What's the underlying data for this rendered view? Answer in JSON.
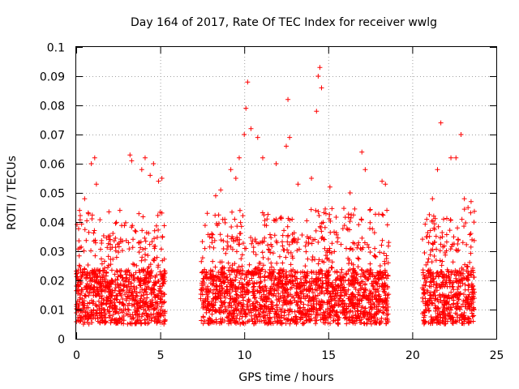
{
  "chart_data": {
    "type": "scatter",
    "title": "Day 164 of 2017, Rate Of TEC Index for receiver wwlg",
    "xlabel": "GPS time / hours",
    "ylabel": "ROTI / TECUs",
    "xlim": [
      0,
      25
    ],
    "ylim": [
      0,
      0.1
    ],
    "grid": true,
    "marker": "+",
    "color": "#ff0000",
    "x_ticks": [
      "0",
      "5",
      "10",
      "15",
      "20",
      "25"
    ],
    "y_ticks": [
      "0",
      "0.01",
      "0.02",
      "0.03",
      "0.04",
      "0.05",
      "0.06",
      "0.07",
      "0.08",
      "0.09",
      "0.1"
    ],
    "data_coverage": [
      {
        "x_start": 0.0,
        "x_end": 5.3
      },
      {
        "x_start": 7.4,
        "x_end": 18.6
      },
      {
        "x_start": 20.6,
        "x_end": 23.7
      }
    ],
    "typical_range": [
      0.005,
      0.03
    ],
    "series": [
      {
        "name": "ROTI",
        "points": [
          [
            0.2,
            0.044
          ],
          [
            0.5,
            0.048
          ],
          [
            0.9,
            0.06
          ],
          [
            1.1,
            0.062
          ],
          [
            1.2,
            0.053
          ],
          [
            2.6,
            0.044
          ],
          [
            3.2,
            0.063
          ],
          [
            3.3,
            0.061
          ],
          [
            3.9,
            0.058
          ],
          [
            4.1,
            0.062
          ],
          [
            4.4,
            0.056
          ],
          [
            4.6,
            0.06
          ],
          [
            4.9,
            0.054
          ],
          [
            5.1,
            0.055
          ],
          [
            7.8,
            0.043
          ],
          [
            8.3,
            0.049
          ],
          [
            8.6,
            0.051
          ],
          [
            9.2,
            0.058
          ],
          [
            9.5,
            0.055
          ],
          [
            9.7,
            0.062
          ],
          [
            10.0,
            0.07
          ],
          [
            10.1,
            0.079
          ],
          [
            10.2,
            0.088
          ],
          [
            10.4,
            0.072
          ],
          [
            10.8,
            0.069
          ],
          [
            11.1,
            0.062
          ],
          [
            11.9,
            0.06
          ],
          [
            12.5,
            0.066
          ],
          [
            12.6,
            0.082
          ],
          [
            12.7,
            0.069
          ],
          [
            13.2,
            0.053
          ],
          [
            14.0,
            0.055
          ],
          [
            14.3,
            0.078
          ],
          [
            14.4,
            0.09
          ],
          [
            14.5,
            0.093
          ],
          [
            14.6,
            0.086
          ],
          [
            15.1,
            0.052
          ],
          [
            16.3,
            0.05
          ],
          [
            17.0,
            0.064
          ],
          [
            17.2,
            0.058
          ],
          [
            18.2,
            0.054
          ],
          [
            18.4,
            0.053
          ],
          [
            21.2,
            0.048
          ],
          [
            21.5,
            0.058
          ],
          [
            21.7,
            0.074
          ],
          [
            22.3,
            0.062
          ],
          [
            22.6,
            0.062
          ],
          [
            22.9,
            0.07
          ],
          [
            23.1,
            0.048
          ],
          [
            23.5,
            0.047
          ]
        ]
      }
    ]
  }
}
